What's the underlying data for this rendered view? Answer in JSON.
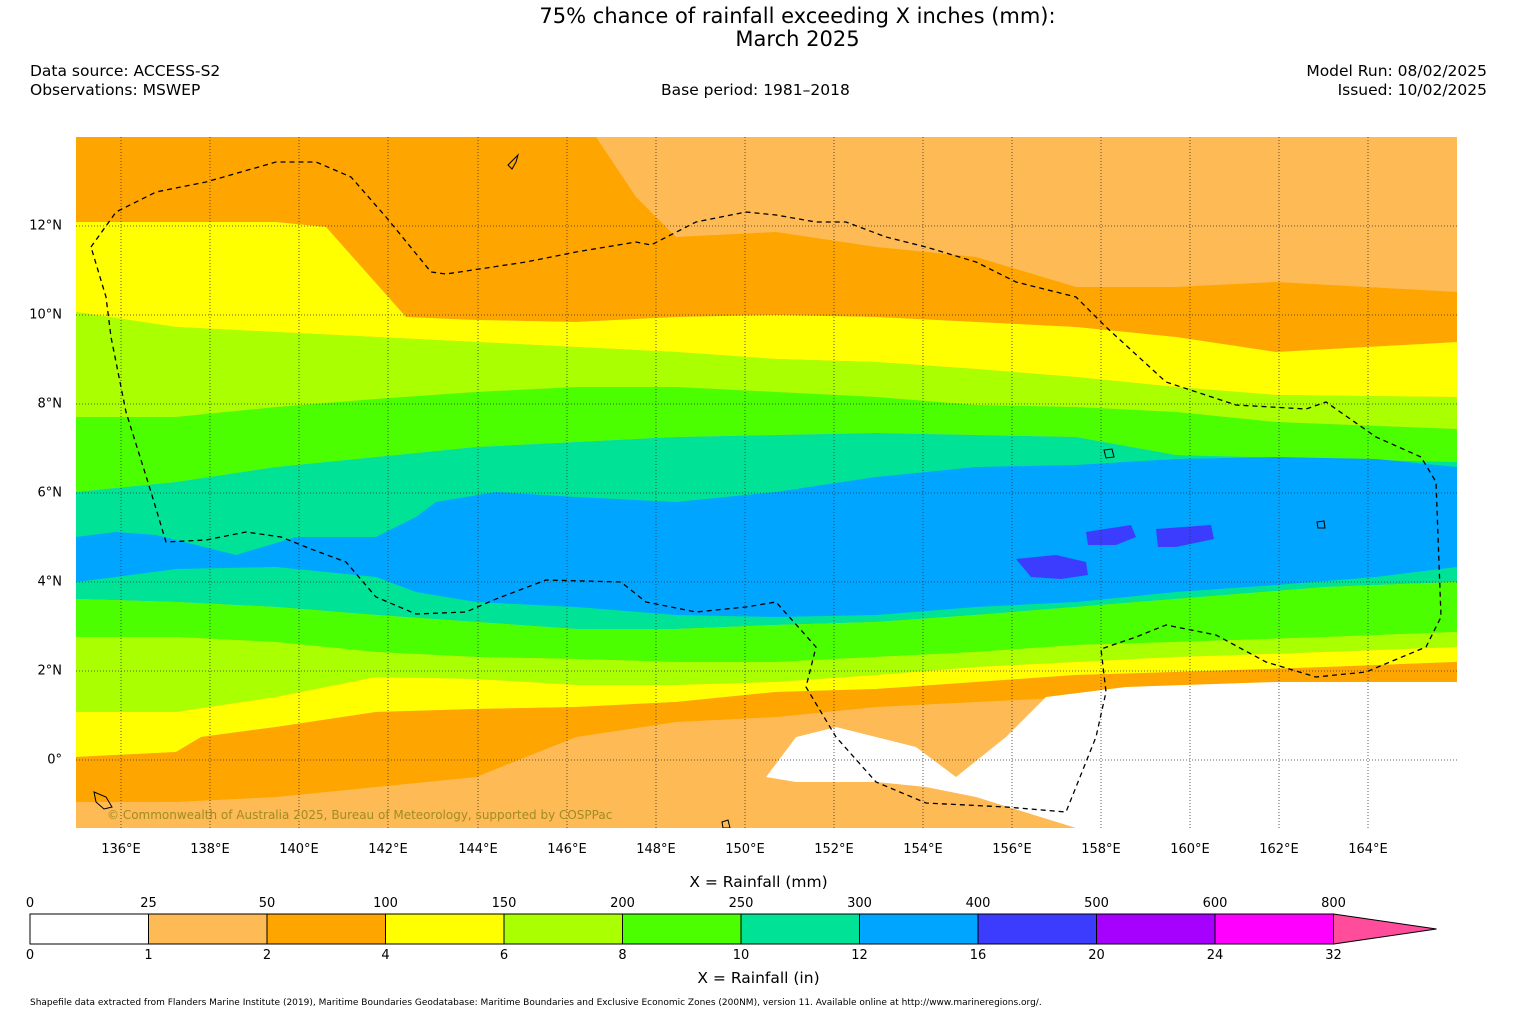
{
  "title": {
    "line1": "75% chance of rainfall exceeding X inches (mm):",
    "line2": "March 2025"
  },
  "header": {
    "data_source": "Data source: ACCESS-S2",
    "observations": "Observations: MSWEP",
    "base_period": "Base period: 1981–2018",
    "model_run": "Model Run: 08/02/2025",
    "issued": "Issued: 10/02/2025"
  },
  "map": {
    "lat_labels": [
      "12°N",
      "10°N",
      "8°N",
      "6°N",
      "4°N",
      "2°N",
      "0°"
    ],
    "lon_labels": [
      "136°E",
      "138°E",
      "140°E",
      "142°E",
      "144°E",
      "146°E",
      "148°E",
      "150°E",
      "152°E",
      "154°E",
      "156°E",
      "158°E",
      "160°E",
      "162°E",
      "164°E"
    ],
    "copyright": "© Commonwealth of Australia 2025, Bureau of Meteorology, supported by COSPPac"
  },
  "colorbar": {
    "mm_title": "X = Rainfall (mm)",
    "in_title": "X = Rainfall (in)",
    "mm_ticks": [
      "0",
      "25",
      "50",
      "100",
      "150",
      "200",
      "250",
      "300",
      "400",
      "500",
      "600",
      "800"
    ],
    "in_ticks": [
      "0",
      "1",
      "2",
      "4",
      "6",
      "8",
      "10",
      "12",
      "16",
      "20",
      "24",
      "32"
    ],
    "colors": [
      "#ffffff",
      "#fdba55",
      "#fea500",
      "#ffff00",
      "#aaff00",
      "#4cff00",
      "#00e396",
      "#00a5ff",
      "#3c3cff",
      "#a600ff",
      "#ff00ff",
      "#ff4c9b"
    ]
  },
  "footnote": "Shapefile data extracted from Flanders Marine Institute (2019), Maritime Boundaries Geodatabase: Maritime Boundaries and Exclusive Economic Zones (200NM), version 11. Available online at http://www.marineregions.org/."
}
